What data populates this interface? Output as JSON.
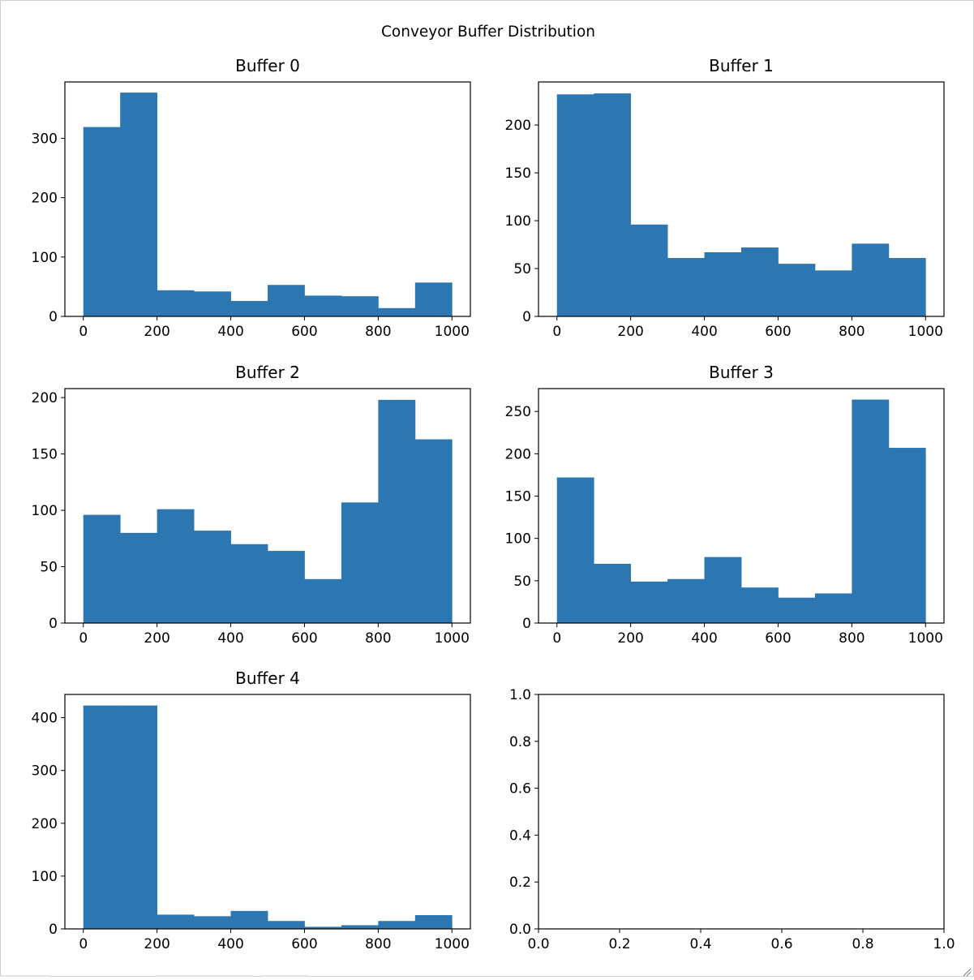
{
  "figure": {
    "suptitle": "Conveyor Buffer Distribution"
  },
  "style": {
    "bar_color": "#2c77b1",
    "axes_color": "#000000",
    "background": "#ffffff"
  },
  "chart_data": [
    {
      "type": "bar",
      "title": "Buffer 0",
      "bin_edges": [
        0,
        100,
        200,
        300,
        400,
        500,
        600,
        700,
        800,
        900,
        1000
      ],
      "values": [
        319,
        377,
        44,
        42,
        26,
        53,
        35,
        34,
        14,
        57
      ],
      "xlim": [
        -50,
        1050
      ],
      "ylim": [
        0,
        395
      ],
      "xticks": [
        0,
        200,
        400,
        600,
        800,
        1000
      ],
      "yticks": [
        0,
        100,
        200,
        300
      ]
    },
    {
      "type": "bar",
      "title": "Buffer 1",
      "bin_edges": [
        0,
        100,
        200,
        300,
        400,
        500,
        600,
        700,
        800,
        900,
        1000
      ],
      "values": [
        232,
        233,
        96,
        61,
        67,
        72,
        55,
        48,
        76,
        61
      ],
      "xlim": [
        -50,
        1050
      ],
      "ylim": [
        0,
        245
      ],
      "xticks": [
        0,
        200,
        400,
        600,
        800,
        1000
      ],
      "yticks": [
        0,
        50,
        100,
        150,
        200
      ]
    },
    {
      "type": "bar",
      "title": "Buffer 2",
      "bin_edges": [
        0,
        100,
        200,
        300,
        400,
        500,
        600,
        700,
        800,
        900,
        1000
      ],
      "values": [
        96,
        80,
        101,
        82,
        70,
        64,
        39,
        107,
        198,
        163
      ],
      "xlim": [
        -50,
        1050
      ],
      "ylim": [
        0,
        208
      ],
      "xticks": [
        0,
        200,
        400,
        600,
        800,
        1000
      ],
      "yticks": [
        0,
        50,
        100,
        150,
        200
      ]
    },
    {
      "type": "bar",
      "title": "Buffer 3",
      "bin_edges": [
        0,
        100,
        200,
        300,
        400,
        500,
        600,
        700,
        800,
        900,
        1000
      ],
      "values": [
        172,
        70,
        49,
        52,
        78,
        42,
        30,
        35,
        264,
        207
      ],
      "xlim": [
        -50,
        1050
      ],
      "ylim": [
        0,
        277
      ],
      "xticks": [
        0,
        200,
        400,
        600,
        800,
        1000
      ],
      "yticks": [
        0,
        50,
        100,
        150,
        200,
        250
      ]
    },
    {
      "type": "bar",
      "title": "Buffer 4",
      "bin_edges": [
        0,
        100,
        200,
        300,
        400,
        500,
        600,
        700,
        800,
        900,
        1000
      ],
      "values": [
        423,
        423,
        27,
        24,
        34,
        15,
        4,
        7,
        15,
        26
      ],
      "xlim": [
        -50,
        1050
      ],
      "ylim": [
        0,
        444
      ],
      "xticks": [
        0,
        200,
        400,
        600,
        800,
        1000
      ],
      "yticks": [
        0,
        100,
        200,
        300,
        400
      ]
    },
    {
      "type": "bar",
      "title": "",
      "bin_edges": [],
      "values": [],
      "xlim": [
        0,
        1
      ],
      "ylim": [
        0,
        1
      ],
      "xticks": [
        0,
        0.2,
        0.4,
        0.6,
        0.8,
        1.0
      ],
      "yticks": [
        0,
        0.2,
        0.4,
        0.6,
        0.8,
        1.0
      ]
    }
  ]
}
